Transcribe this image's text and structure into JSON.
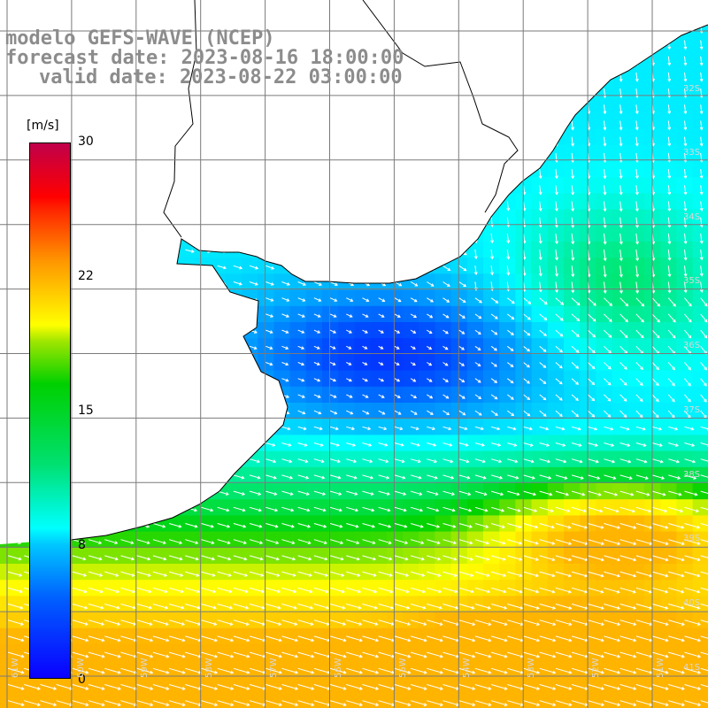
{
  "title": {
    "line1": "modelo GEFS-WAVE (NCEP)",
    "line2": "forecast date: 2023-08-16 18:00:00",
    "line3": "valid date: 2023-08-22 03:00:00"
  },
  "colorbar": {
    "unit": "[m/s]",
    "ticks": [
      "30",
      "22",
      "15",
      "8",
      "0"
    ]
  },
  "lat_labels": [
    "32S",
    "33S",
    "34S",
    "35S",
    "36S",
    "37S",
    "38S",
    "39S",
    "40S",
    "41S"
  ],
  "lon_labels": [
    "61W",
    "60W",
    "59W",
    "58W",
    "57W",
    "56W",
    "55W",
    "54W",
    "53W",
    "52W",
    "51W"
  ],
  "colors": {
    "land": "#ffffff",
    "coast": "#000000",
    "grid": "#7a7a7a",
    "arrows": "#ffffff",
    "title": "#8c8c8c"
  }
}
